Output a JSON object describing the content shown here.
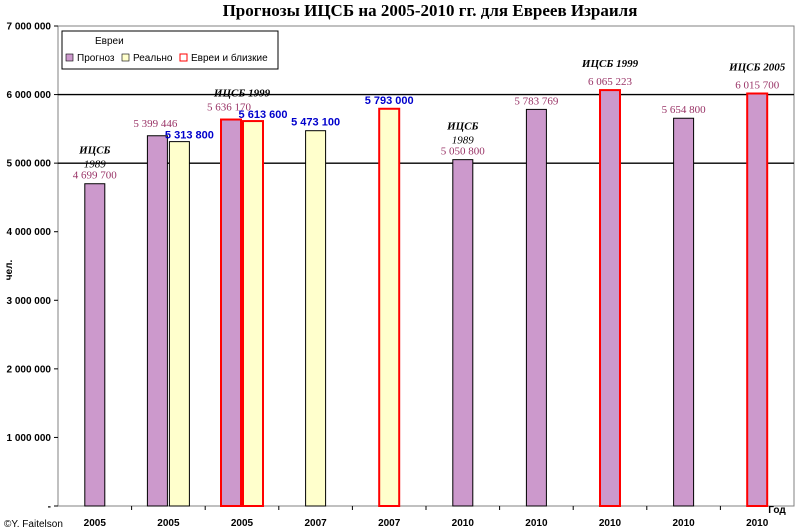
{
  "chart_data": {
    "type": "bar",
    "title": "Прогнозы ИЦСБ на 2005-2010 гг. для Евреев Израиля",
    "ylabel": "чел.",
    "xlabel": "Год",
    "ylim": [
      0,
      7000000
    ],
    "yticks": [
      "-",
      "1 000 000",
      "2 000 000",
      "3 000 000",
      "4 000 000",
      "5 000 000",
      "6 000 000",
      "7 000 000"
    ],
    "gridlines": [
      5000000,
      6000000
    ],
    "legend": {
      "title": "Евреи",
      "items": [
        {
          "label": "Прогноз",
          "key": "forecast"
        },
        {
          "label": "Реально",
          "key": "actual"
        },
        {
          "label": "Евреи и близкие",
          "key": "broad"
        }
      ]
    },
    "categories": [
      "2005",
      "2005",
      "2005",
      "2007",
      "2007",
      "2010",
      "2010",
      "2010",
      "2010",
      "2010"
    ],
    "bars": [
      {
        "group": 0,
        "type": "forecast",
        "value": 4699700,
        "label": "4 699 700"
      },
      {
        "group": 1,
        "type": "forecast",
        "value": 5399446,
        "label": "5 399 446"
      },
      {
        "group": 1,
        "type": "actual",
        "value": 5313800,
        "label": "5 313 800"
      },
      {
        "group": 2,
        "type": "broad",
        "value": 5636170,
        "label": "5 636 170"
      },
      {
        "group": 2,
        "type": "actual_broad",
        "value": 5613600,
        "label": "5 613 600"
      },
      {
        "group": 3,
        "type": "actual",
        "value": 5473100,
        "label": "5 473 100"
      },
      {
        "group": 4,
        "type": "actual_broad",
        "value": 5793000,
        "label": "5 793 000"
      },
      {
        "group": 5,
        "type": "forecast",
        "value": 5050800,
        "label": "5 050 800"
      },
      {
        "group": 6,
        "type": "forecast",
        "value": 5783769,
        "label": "5 783 769"
      },
      {
        "group": 7,
        "type": "broad",
        "value": 6065223,
        "label": "6 065 223"
      },
      {
        "group": 8,
        "type": "forecast",
        "value": 5654800,
        "label": "5 654 800"
      },
      {
        "group": 9,
        "type": "broad",
        "value": 6015700,
        "label": "6 015 700"
      }
    ],
    "annotations": [
      {
        "text": "ИЦСБ",
        "group": 0,
        "row": 0
      },
      {
        "text": "1989",
        "group": 0,
        "row": 1
      },
      {
        "text": "ИЦСБ 1999",
        "group": 2,
        "row": 0
      },
      {
        "text": "ИЦСБ",
        "group": 5,
        "row": 0
      },
      {
        "text": "1989",
        "group": 5,
        "row": 1
      },
      {
        "text": "ИЦСБ 1999",
        "group": 7,
        "row": 0
      },
      {
        "text": "ИЦСБ 2005",
        "group": 9,
        "row": 0
      }
    ]
  },
  "copyright": "©Y. Faitelson",
  "colors": {
    "forecast": "#cc99cc",
    "actual": "#ffffcc",
    "broad_border": "#ff0000",
    "label_forecast": "#993366",
    "label_actual": "#0000cc",
    "plot_bg": "#ffffff",
    "frame": "#808080"
  }
}
